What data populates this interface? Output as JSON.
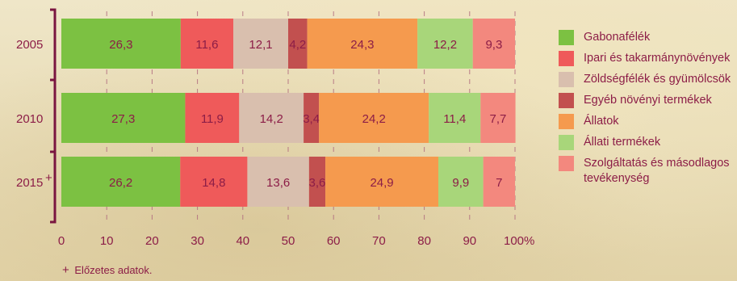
{
  "chart_data": {
    "type": "bar",
    "orientation": "horizontal",
    "stacked": true,
    "title": "",
    "xlabel": "",
    "ylabel": "",
    "xlim": [
      0,
      100
    ],
    "grid": "vertical dashed",
    "legend_position": "right",
    "categories": [
      "2005",
      "2010",
      "2015"
    ],
    "category_marks": [
      "",
      "",
      "+"
    ],
    "x_ticks": [
      "0",
      "10",
      "20",
      "30",
      "40",
      "50",
      "60",
      "70",
      "80",
      "90",
      "100%"
    ],
    "series": [
      {
        "name": "Gabonafélék",
        "color": "#7cc142",
        "values": [
          26.3,
          27.3,
          26.2
        ],
        "labels": [
          "26,3",
          "27,3",
          "26,2"
        ]
      },
      {
        "name": "Ipari és takarmánynövények",
        "color": "#ef5a5a",
        "values": [
          11.6,
          11.9,
          14.8
        ],
        "labels": [
          "11,6",
          "11,9",
          "14,8"
        ]
      },
      {
        "name": "Zöldségfélék és gyümölcsök",
        "color": "#d9bfae",
        "values": [
          12.1,
          14.2,
          13.6
        ],
        "labels": [
          "12,1",
          "14,2",
          "13,6"
        ]
      },
      {
        "name": "Egyéb növényi termékek",
        "color": "#c2504f",
        "values": [
          4.2,
          3.4,
          3.6
        ],
        "labels": [
          "4,2",
          "3,4",
          "3,6"
        ]
      },
      {
        "name": "Állatok",
        "color": "#f59a4e",
        "values": [
          24.3,
          24.2,
          24.9
        ],
        "labels": [
          "24,3",
          "24,2",
          "24,9"
        ]
      },
      {
        "name": "Állati termékek",
        "color": "#a8d67a",
        "values": [
          12.2,
          11.4,
          9.9
        ],
        "labels": [
          "12,2",
          "11,4",
          "9,9"
        ]
      },
      {
        "name": "Szolgáltatás és másodlagos tevékenység",
        "color": "#f3887e",
        "values": [
          9.3,
          7.7,
          7.0
        ],
        "labels": [
          "9,3",
          "7,7",
          "7"
        ]
      }
    ]
  },
  "footnote": {
    "mark": "+",
    "text": "Előzetes adatok."
  },
  "colors": {
    "text": "#8c1d47",
    "axis": "#7a1540",
    "grid": "#b06a7e"
  }
}
